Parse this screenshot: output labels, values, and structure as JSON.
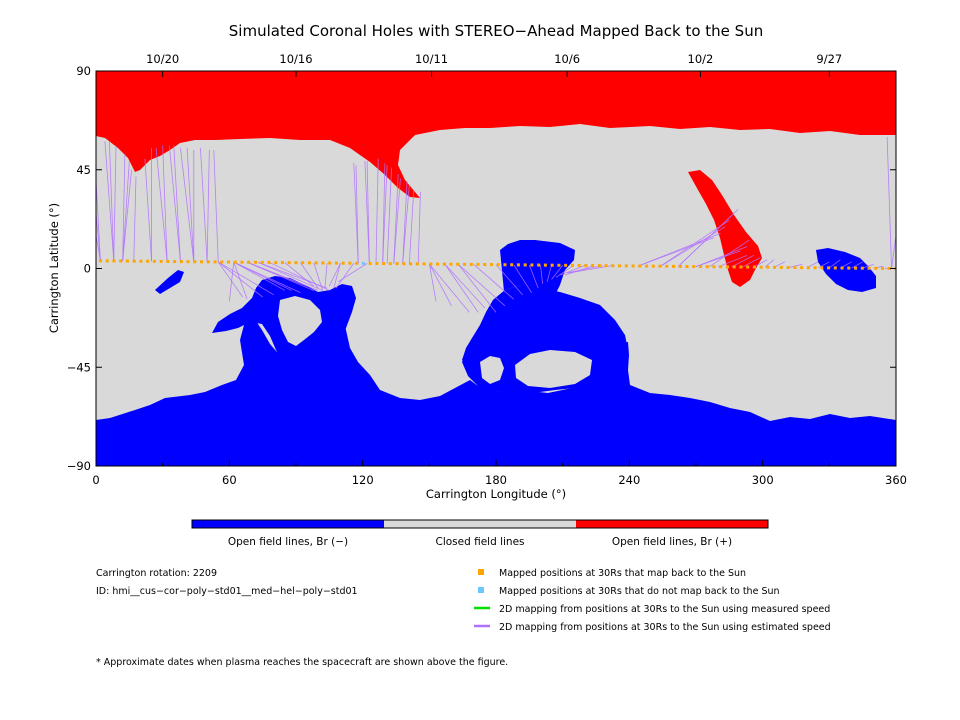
{
  "chart_data": {
    "type": "map",
    "title": "Simulated Coronal Holes with STEREO−Ahead Mapped Back to the Sun",
    "xlabel": "Carrington Longitude (°)",
    "ylabel": "Carrington Latitude (°)",
    "xlim": [
      0,
      360
    ],
    "ylim": [
      -90,
      90
    ],
    "x_ticks": [
      "0",
      "60",
      "120",
      "180",
      "240",
      "300",
      "360"
    ],
    "y_ticks": [
      "90",
      "45",
      "0",
      "−45",
      "−90"
    ],
    "top_date_ticks": [
      {
        "label": "10/20",
        "lon": 30
      },
      {
        "label": "10/16",
        "lon": 90
      },
      {
        "label": "10/11",
        "lon": 151
      },
      {
        "label": "10/6",
        "lon": 212
      },
      {
        "label": "10/2",
        "lon": 272
      },
      {
        "label": "9/27",
        "lon": 330
      }
    ],
    "colorbar": {
      "segments": [
        {
          "label": "Open field lines, Br (−)",
          "color": "#0000ff"
        },
        {
          "label": "Closed field lines",
          "color": "#d9d9d9"
        },
        {
          "label": "Open field lines, Br (+)",
          "color": "#ff0000"
        }
      ]
    },
    "mapped_points": {
      "lon_start": 2,
      "lon_end": 360,
      "count": 119,
      "lat_start": 3.5,
      "lat_end": 0,
      "color": "#ffa500",
      "unmapped_color": "#6ec6ff",
      "unmapped_lon": [
        120.5
      ]
    },
    "mapping_lines": [
      {
        "from_lon": 2,
        "to": [
          [
            0,
            15
          ],
          [
            0,
            25
          ],
          [
            0,
            40
          ]
        ]
      },
      {
        "from_lon": 8,
        "to": [
          [
            4,
            58
          ],
          [
            6,
            58
          ],
          [
            9,
            56
          ]
        ]
      },
      {
        "from_lon": 12,
        "to": [
          [
            13,
            52
          ],
          [
            15,
            49
          ],
          [
            16,
            45
          ]
        ]
      },
      {
        "from_lon": 17,
        "to": [
          [
            18,
            42
          ]
        ]
      },
      {
        "from_lon": 25,
        "to": [
          [
            22,
            50
          ],
          [
            25,
            55
          ]
        ]
      },
      {
        "from_lon": 32,
        "to": [
          [
            27,
            55
          ],
          [
            30,
            56
          ]
        ]
      },
      {
        "from_lon": 38,
        "to": [
          [
            33,
            56
          ],
          [
            35,
            56
          ]
        ]
      },
      {
        "from_lon": 44,
        "to": [
          [
            38,
            55
          ],
          [
            41,
            55
          ],
          [
            44,
            54
          ]
        ]
      },
      {
        "from_lon": 50,
        "to": [
          [
            47,
            55
          ],
          [
            51,
            54
          ]
        ]
      },
      {
        "from_lon": 55,
        "to": [
          [
            53,
            54
          ]
        ]
      },
      {
        "from_lon": 55,
        "to": [
          [
            66,
            -13
          ],
          [
            75,
            -13
          ],
          [
            80,
            -12
          ]
        ]
      },
      {
        "from_lon": 62,
        "to": [
          [
            85,
            -10
          ],
          [
            88,
            -10
          ],
          [
            92,
            -11
          ]
        ]
      },
      {
        "from_lon": 68,
        "to": [
          [
            95,
            -8
          ],
          [
            98,
            -10
          ],
          [
            100,
            -10
          ]
        ]
      },
      {
        "from_lon": 73,
        "to": [
          [
            102,
            -10
          ],
          [
            104,
            -9
          ]
        ]
      },
      {
        "from_lon": 78,
        "to": [
          [
            105,
            -10
          ]
        ]
      },
      {
        "from_lon": 62,
        "to": [
          [
            60,
            -15
          ],
          [
            68,
            -14
          ]
        ]
      },
      {
        "from_lon": 85,
        "to": [
          [
            98,
            -8
          ]
        ]
      },
      {
        "from_lon": 92,
        "to": [
          [
            100,
            -9
          ]
        ]
      },
      {
        "from_lon": 98,
        "to": [
          [
            102,
            -10
          ]
        ]
      },
      {
        "from_lon": 104,
        "to": [
          [
            103,
            -9
          ]
        ]
      },
      {
        "from_lon": 110,
        "to": [
          [
            105,
            -8
          ],
          [
            107,
            -9
          ]
        ]
      },
      {
        "from_lon": 116,
        "to": [
          [
            108,
            -9
          ]
        ]
      },
      {
        "from_lon": 122,
        "to": [
          [
            109,
            -6
          ]
        ]
      },
      {
        "from_lon": 118,
        "to": [
          [
            116,
            48
          ],
          [
            117,
            47
          ]
        ]
      },
      {
        "from_lon": 123,
        "to": [
          [
            121,
            49
          ],
          [
            122,
            49
          ]
        ]
      },
      {
        "from_lon": 126,
        "to": [
          [
            127,
            50
          ]
        ]
      },
      {
        "from_lon": 129,
        "to": [
          [
            130,
            48
          ],
          [
            131,
            47
          ]
        ]
      },
      {
        "from_lon": 131,
        "to": [
          [
            133,
            46
          ]
        ]
      },
      {
        "from_lon": 134,
        "to": [
          [
            136,
            43
          ],
          [
            137,
            41
          ]
        ]
      },
      {
        "from_lon": 138,
        "to": [
          [
            140,
            40
          ],
          [
            141,
            38
          ]
        ]
      },
      {
        "from_lon": 141,
        "to": [
          [
            143,
            36
          ]
        ]
      },
      {
        "from_lon": 145,
        "to": [
          [
            146,
            35
          ]
        ]
      },
      {
        "from_lon": 150,
        "to": [
          [
            153,
            -15
          ],
          [
            160,
            -17
          ],
          [
            168,
            -20
          ]
        ]
      },
      {
        "from_lon": 157,
        "to": [
          [
            172,
            -20
          ],
          [
            175,
            -18
          ]
        ]
      },
      {
        "from_lon": 163,
        "to": [
          [
            180,
            -20
          ],
          [
            184,
            -17
          ]
        ]
      },
      {
        "from_lon": 170,
        "to": [
          [
            188,
            -14
          ]
        ]
      },
      {
        "from_lon": 180,
        "to": [
          [
            192,
            -12
          ]
        ]
      },
      {
        "from_lon": 188,
        "to": [
          [
            196,
            -11
          ]
        ]
      },
      {
        "from_lon": 195,
        "to": [
          [
            199,
            -9
          ]
        ]
      },
      {
        "from_lon": 200,
        "to": [
          [
            201,
            -7
          ]
        ]
      },
      {
        "from_lon": 205,
        "to": [
          [
            203,
            -6
          ]
        ]
      },
      {
        "from_lon": 210,
        "to": [
          [
            205,
            -5
          ]
        ]
      },
      {
        "from_lon": 215,
        "to": [
          [
            207,
            -4
          ]
        ]
      },
      {
        "from_lon": 220,
        "to": [
          [
            209,
            -3
          ]
        ]
      },
      {
        "from_lon": 224,
        "to": [
          [
            211,
            -3
          ]
        ]
      },
      {
        "from_lon": 228,
        "to": [
          [
            212,
            -2
          ]
        ]
      },
      {
        "from_lon": 232,
        "to": [
          [
            213,
            -2
          ]
        ]
      },
      {
        "from_lon": 244,
        "to": [
          [
            278,
            14
          ],
          [
            281,
            16
          ]
        ]
      },
      {
        "from_lon": 254,
        "to": [
          [
            283,
            19
          ],
          [
            285,
            22
          ]
        ]
      },
      {
        "from_lon": 262,
        "to": [
          [
            287,
            25
          ],
          [
            289,
            27
          ]
        ]
      },
      {
        "from_lon": 270,
        "to": [
          [
            290,
            8
          ],
          [
            293,
            10
          ]
        ]
      },
      {
        "from_lon": 276,
        "to": [
          [
            294,
            13
          ]
        ]
      },
      {
        "from_lon": 280,
        "to": [
          [
            293,
            6
          ]
        ]
      },
      {
        "from_lon": 286,
        "to": [
          [
            296,
            6
          ]
        ]
      },
      {
        "from_lon": 291,
        "to": [
          [
            299,
            5
          ]
        ]
      },
      {
        "from_lon": 296,
        "to": [
          [
            302,
            4
          ]
        ]
      },
      {
        "from_lon": 301,
        "to": [
          [
            305,
            4
          ]
        ]
      },
      {
        "from_lon": 305,
        "to": [
          [
            310,
            3
          ]
        ]
      },
      {
        "from_lon": 312,
        "to": [
          [
            318,
            2
          ]
        ]
      },
      {
        "from_lon": 320,
        "to": [
          [
            325,
            3
          ]
        ]
      },
      {
        "from_lon": 325,
        "to": [
          [
            330,
            3
          ]
        ]
      },
      {
        "from_lon": 330,
        "to": [
          [
            335,
            4
          ]
        ]
      },
      {
        "from_lon": 335,
        "to": [
          [
            340,
            3
          ]
        ]
      },
      {
        "from_lon": 340,
        "to": [
          [
            345,
            3
          ]
        ]
      },
      {
        "from_lon": 345,
        "to": [
          [
            350,
            2
          ]
        ]
      },
      {
        "from_lon": 350,
        "to": [
          [
            354,
            1
          ]
        ]
      },
      {
        "from_lon": 355,
        "to": [
          [
            358,
            0
          ]
        ]
      },
      {
        "from_lon": 358,
        "to": [
          [
            356,
            60
          ],
          [
            360,
            15
          ]
        ]
      }
    ]
  },
  "info": {
    "rotation": "Carrington rotation: 2209",
    "id": "ID: hmi__cus−cor−poly−std01__med−hel−poly−std01"
  },
  "legend": [
    {
      "label": "Mapped positions at 30Rs that map back to the Sun",
      "color": "#ffa500",
      "kind": "square"
    },
    {
      "label": "Mapped positions at 30Rs that do not map back to the Sun",
      "color": "#6ec6ff",
      "kind": "square"
    },
    {
      "label": "2D mapping from positions at 30Rs to the Sun using measured speed",
      "color": "#00e000",
      "kind": "line"
    },
    {
      "label": "2D mapping from positions at 30Rs to the Sun using estimated speed",
      "color": "#b070ff",
      "kind": "line"
    }
  ],
  "footnote": "* Approximate dates when plasma reaches the spacecraft are shown above the figure."
}
